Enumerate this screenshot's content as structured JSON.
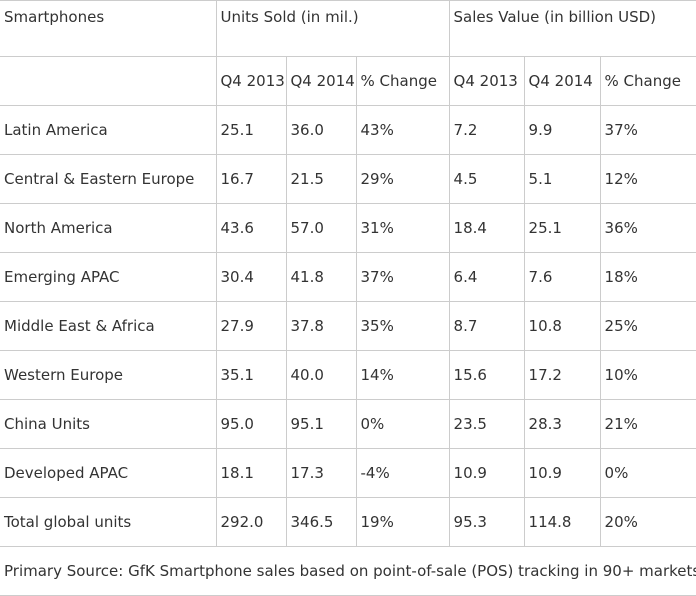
{
  "header": {
    "row_label": "Smartphones",
    "group_units": "Units Sold (in mil.)",
    "group_sales": "Sales Value (in billion USD)",
    "sub_units": [
      "Q4 2013",
      "Q4 2014",
      "% Change"
    ],
    "sub_sales": [
      "Q4 2013",
      "Q4 2014",
      "% Change"
    ]
  },
  "rows": [
    {
      "region": "Latin America",
      "units": [
        "25.1",
        "36.0",
        "43%"
      ],
      "sales": [
        "7.2",
        "9.9",
        "37%"
      ]
    },
    {
      "region": "Central & Eastern Europe",
      "units": [
        "16.7",
        "21.5",
        "29%"
      ],
      "sales": [
        "4.5",
        "5.1",
        "12%"
      ]
    },
    {
      "region": "North America",
      "units": [
        "43.6",
        "57.0",
        "31%"
      ],
      "sales": [
        "18.4",
        "25.1",
        "36%"
      ]
    },
    {
      "region": "Emerging APAC",
      "units": [
        "30.4",
        "41.8",
        "37%"
      ],
      "sales": [
        "6.4",
        "7.6",
        "18%"
      ]
    },
    {
      "region": "Middle East & Africa",
      "units": [
        "27.9",
        "37.8",
        "35%"
      ],
      "sales": [
        "8.7",
        "10.8",
        "25%"
      ]
    },
    {
      "region": "Western Europe",
      "units": [
        "35.1",
        "40.0",
        "14%"
      ],
      "sales": [
        "15.6",
        "17.2",
        "10%"
      ]
    },
    {
      "region": "China Units",
      "units": [
        "95.0",
        "95.1",
        "0%"
      ],
      "sales": [
        "23.5",
        "28.3",
        "21%"
      ]
    },
    {
      "region": "Developed APAC",
      "units": [
        "18.1",
        "17.3",
        "-4%"
      ],
      "sales": [
        "10.9",
        "10.9",
        "0%"
      ]
    },
    {
      "region": "Total global units",
      "units": [
        "292.0",
        "346.5",
        "19%"
      ],
      "sales": [
        "95.3",
        "114.8",
        "20%"
      ]
    }
  ],
  "footer": {
    "source": "Primary Source: GfK Smartphone sales based on point-of-sale (POS) tracking in 90+ markets"
  }
}
